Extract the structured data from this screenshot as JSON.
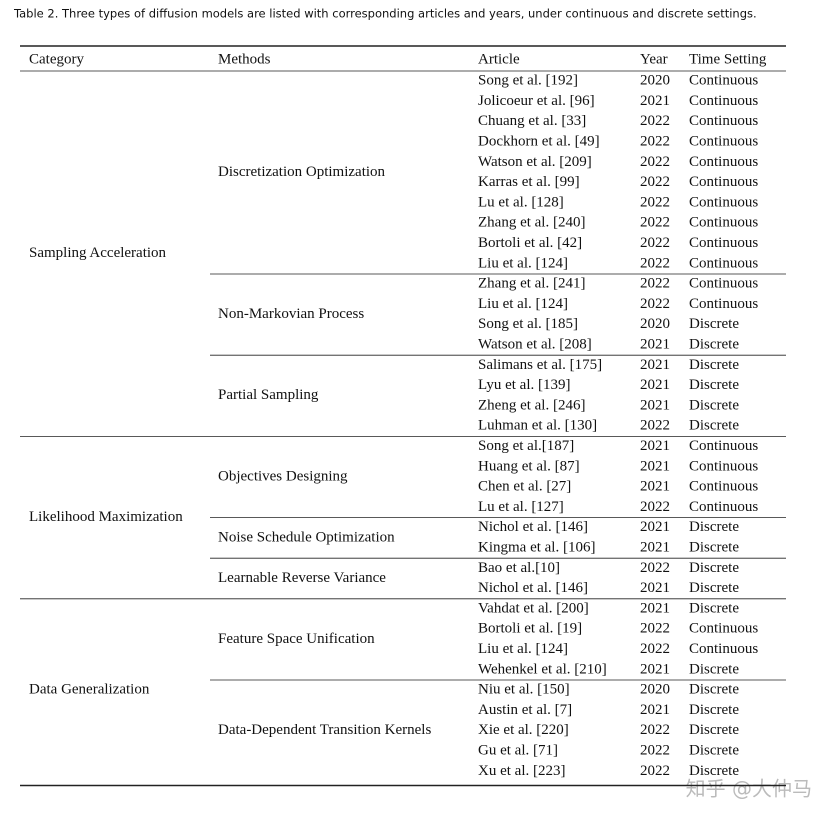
{
  "caption": "Table 2.  Three types of diffusion models are listed with corresponding articles and years, under continuous and discrete settings.",
  "table": {
    "headers": [
      "Category",
      "Methods",
      "Article",
      "Year",
      "Time Setting"
    ],
    "groups": [
      {
        "category": "Sampling Acceleration",
        "methods": [
          {
            "name": "Discretization Optimization",
            "rows": [
              [
                "Song et al. [192]",
                2020,
                "Continuous"
              ],
              [
                "Jolicoeur et al. [96]",
                2021,
                "Continuous"
              ],
              [
                "Chuang et al. [33]",
                2022,
                "Continuous"
              ],
              [
                "Dockhorn et al. [49]",
                2022,
                "Continuous"
              ],
              [
                "Watson et al. [209]",
                2022,
                "Continuous"
              ],
              [
                "Karras et al. [99]",
                2022,
                "Continuous"
              ],
              [
                "Lu et al. [128]",
                2022,
                "Continuous"
              ],
              [
                "Zhang et al. [240]",
                2022,
                "Continuous"
              ],
              [
                "Bortoli et al. [42]",
                2022,
                "Continuous"
              ],
              [
                "Liu et al. [124]",
                2022,
                "Continuous"
              ]
            ]
          },
          {
            "name": "Non-Markovian Process",
            "rows": [
              [
                "Zhang et al. [241]",
                2022,
                "Continuous"
              ],
              [
                "Liu et al. [124]",
                2022,
                "Continuous"
              ],
              [
                "Song et al. [185]",
                2020,
                "Discrete"
              ],
              [
                "Watson et al. [208]",
                2021,
                "Discrete"
              ]
            ]
          },
          {
            "name": "Partial Sampling",
            "rows": [
              [
                "Salimans et al. [175]",
                2021,
                "Discrete"
              ],
              [
                "Lyu et al. [139]",
                2021,
                "Discrete"
              ],
              [
                "Zheng et al. [246]",
                2021,
                "Discrete"
              ],
              [
                "Luhman et al. [130]",
                2022,
                "Discrete"
              ]
            ]
          }
        ]
      },
      {
        "category": "Likelihood Maximization",
        "methods": [
          {
            "name": "Objectives Designing",
            "rows": [
              [
                "Song et al.[187]",
                2021,
                "Continuous"
              ],
              [
                "Huang et al. [87]",
                2021,
                "Continuous"
              ],
              [
                "Chen et al. [27]",
                2021,
                "Continuous"
              ],
              [
                "Lu et al. [127]",
                2022,
                "Continuous"
              ]
            ]
          },
          {
            "name": "Noise Schedule Optimization",
            "rows": [
              [
                "Nichol et al. [146]",
                2021,
                "Discrete"
              ],
              [
                "Kingma et al. [106]",
                2021,
                "Discrete"
              ]
            ]
          },
          {
            "name": "Learnable Reverse Variance",
            "rows": [
              [
                "Bao et al.[10]",
                2022,
                "Discrete"
              ],
              [
                "Nichol et al. [146]",
                2021,
                "Discrete"
              ]
            ]
          }
        ]
      },
      {
        "category": "Data Generalization",
        "methods": [
          {
            "name": "Feature Space Unification",
            "rows": [
              [
                "Vahdat et al. [200]",
                2021,
                "Discrete"
              ],
              [
                "Bortoli et al. [19]",
                2022,
                "Continuous"
              ],
              [
                "Liu et al. [124]",
                2022,
                "Continuous"
              ],
              [
                "Wehenkel et al. [210]",
                2021,
                "Discrete"
              ]
            ]
          },
          {
            "name": "Data-Dependent Transition Kernels",
            "rows": [
              [
                "Niu et al. [150]",
                2020,
                "Discrete"
              ],
              [
                "Austin et al. [7]",
                2021,
                "Discrete"
              ],
              [
                "Xie et al. [220]",
                2022,
                "Discrete"
              ],
              [
                "Gu et al. [71]",
                2022,
                "Discrete"
              ],
              [
                "Xu et al. [223]",
                2022,
                "Discrete"
              ]
            ]
          }
        ]
      }
    ]
  },
  "watermark": "知乎 @大仲马"
}
